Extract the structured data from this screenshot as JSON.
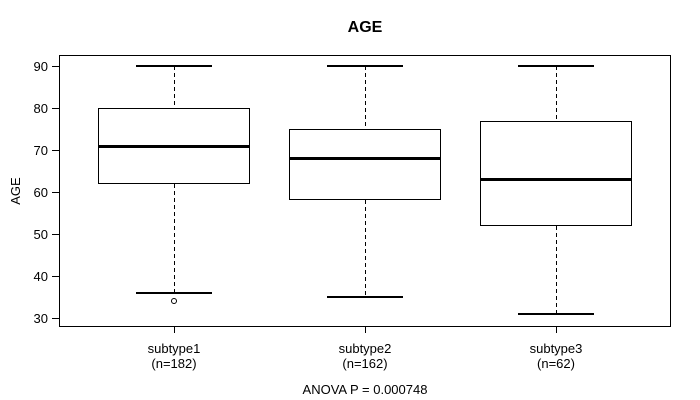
{
  "chart_data": {
    "type": "boxplot",
    "title": "AGE",
    "ylabel": "AGE",
    "footer": "ANOVA P = 0.000748",
    "y_ticks": [
      30,
      40,
      50,
      60,
      70,
      80,
      90
    ],
    "ylim": [
      28.1,
      92.4
    ],
    "grid": false,
    "line_color": "#000000",
    "background": "#ffffff",
    "groups": [
      {
        "label": "subtype1",
        "sublabel": "(n=182)",
        "n": 182,
        "whisker_low": 36,
        "q1": 62,
        "median": 71,
        "q3": 80,
        "whisker_high": 90,
        "outliers": [
          34
        ]
      },
      {
        "label": "subtype2",
        "sublabel": "(n=162)",
        "n": 162,
        "whisker_low": 35,
        "q1": 58,
        "median": 68,
        "q3": 75,
        "whisker_high": 90,
        "outliers": []
      },
      {
        "label": "subtype3",
        "sublabel": "(n=62)",
        "n": 62,
        "whisker_low": 31,
        "q1": 52,
        "median": 63,
        "q3": 77,
        "whisker_high": 90,
        "outliers": []
      }
    ]
  }
}
